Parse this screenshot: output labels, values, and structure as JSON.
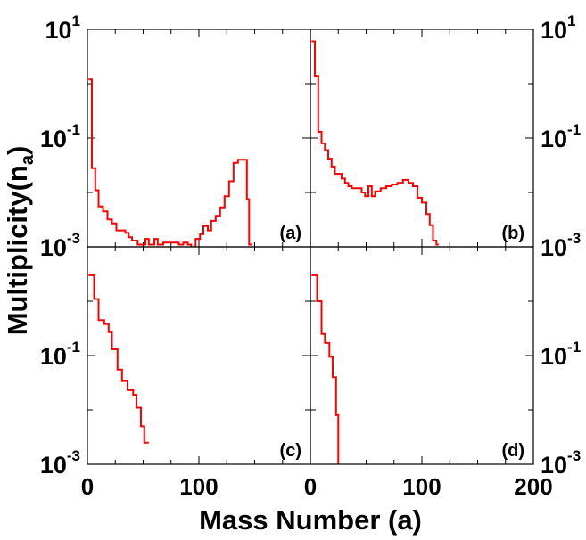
{
  "chart_data": {
    "type": "line",
    "layout": "2x2 panels sharing axes",
    "xlabel": "Mass Number (a)",
    "ylabel_main": "Multiplicity(n",
    "ylabel_sub": "a",
    "ylabel_close": ")",
    "xlim": [
      0,
      200
    ],
    "ylim": [
      0.001,
      10
    ],
    "yscale": "log",
    "x_ticks": [
      "0",
      "100",
      "200"
    ],
    "y_ticks": [
      {
        "base": "10",
        "exp": "1",
        "value": 10
      },
      {
        "base": "10",
        "exp": "-1",
        "value": 0.1
      },
      {
        "base": "10",
        "exp": "-3",
        "value": 0.001
      }
    ],
    "line_color": "#ff0000",
    "panels": [
      {
        "label": "(a)",
        "points": [
          [
            1,
            1.2
          ],
          [
            4,
            1.2
          ],
          [
            4,
            0.028
          ],
          [
            7,
            0.028
          ],
          [
            7,
            0.011
          ],
          [
            10,
            0.011
          ],
          [
            10,
            0.0055
          ],
          [
            14,
            0.0055
          ],
          [
            14,
            0.0045
          ],
          [
            18,
            0.0045
          ],
          [
            18,
            0.0032
          ],
          [
            22,
            0.0032
          ],
          [
            22,
            0.0027
          ],
          [
            26,
            0.0027
          ],
          [
            26,
            0.002
          ],
          [
            30,
            0.002
          ],
          [
            30,
            0.002
          ],
          [
            34,
            0.002
          ],
          [
            34,
            0.0018
          ],
          [
            37,
            0.0018
          ],
          [
            37,
            0.0015
          ],
          [
            40,
            0.0015
          ],
          [
            40,
            0.0013
          ],
          [
            45,
            0.0013
          ],
          [
            45,
            0.0011
          ],
          [
            52,
            0.0011
          ],
          [
            52,
            0.0014
          ],
          [
            55,
            0.0014
          ],
          [
            55,
            0.0011
          ],
          [
            60,
            0.0011
          ],
          [
            60,
            0.0014
          ],
          [
            63,
            0.0014
          ],
          [
            63,
            0.0011
          ],
          [
            68,
            0.0011
          ],
          [
            68,
            0.0012
          ],
          [
            75,
            0.0012
          ],
          [
            75,
            0.0012
          ],
          [
            82,
            0.0012
          ],
          [
            82,
            0.0011
          ],
          [
            86,
            0.0011
          ],
          [
            86,
            0.0012
          ],
          [
            90,
            0.0012
          ],
          [
            90,
            0.0011
          ],
          [
            93,
            0.0011
          ],
          [
            93,
            0.0009
          ],
          [
            97,
            0.0009
          ],
          [
            97,
            0.0014
          ],
          [
            101,
            0.0014
          ],
          [
            101,
            0.0017
          ],
          [
            104,
            0.0017
          ],
          [
            104,
            0.0024
          ],
          [
            108,
            0.0024
          ],
          [
            108,
            0.002
          ],
          [
            111,
            0.002
          ],
          [
            111,
            0.003
          ],
          [
            115,
            0.003
          ],
          [
            115,
            0.0037
          ],
          [
            119,
            0.0037
          ],
          [
            119,
            0.0053
          ],
          [
            123,
            0.0053
          ],
          [
            123,
            0.0085
          ],
          [
            127,
            0.0085
          ],
          [
            127,
            0.016
          ],
          [
            131,
            0.016
          ],
          [
            131,
            0.035
          ],
          [
            135,
            0.035
          ],
          [
            135,
            0.04
          ],
          [
            139,
            0.04
          ],
          [
            139,
            0.04
          ],
          [
            143,
            0.04
          ],
          [
            143,
            0.0075
          ],
          [
            145,
            0.0075
          ],
          [
            145,
            0.0011
          ],
          [
            148,
            0.0011
          ]
        ]
      },
      {
        "label": "(b)",
        "points": [
          [
            1,
            6.0
          ],
          [
            4,
            6.0
          ],
          [
            4,
            1.4
          ],
          [
            7,
            1.4
          ],
          [
            7,
            0.13
          ],
          [
            10,
            0.13
          ],
          [
            10,
            0.08
          ],
          [
            13,
            0.08
          ],
          [
            13,
            0.06
          ],
          [
            16,
            0.06
          ],
          [
            16,
            0.042
          ],
          [
            19,
            0.042
          ],
          [
            19,
            0.03
          ],
          [
            22,
            0.03
          ],
          [
            22,
            0.022
          ],
          [
            25,
            0.022
          ],
          [
            25,
            0.022
          ],
          [
            28,
            0.022
          ],
          [
            28,
            0.018
          ],
          [
            31,
            0.018
          ],
          [
            31,
            0.015
          ],
          [
            34,
            0.015
          ],
          [
            34,
            0.013
          ],
          [
            37,
            0.013
          ],
          [
            37,
            0.012
          ],
          [
            40,
            0.012
          ],
          [
            40,
            0.012
          ],
          [
            43,
            0.012
          ],
          [
            43,
            0.012
          ],
          [
            46,
            0.012
          ],
          [
            46,
            0.01
          ],
          [
            49,
            0.01
          ],
          [
            49,
            0.0085
          ],
          [
            52,
            0.0085
          ],
          [
            52,
            0.013
          ],
          [
            55,
            0.013
          ],
          [
            55,
            0.0085
          ],
          [
            58,
            0.0085
          ],
          [
            58,
            0.0105
          ],
          [
            63,
            0.0105
          ],
          [
            63,
            0.012
          ],
          [
            68,
            0.012
          ],
          [
            68,
            0.013
          ],
          [
            73,
            0.013
          ],
          [
            73,
            0.014
          ],
          [
            78,
            0.014
          ],
          [
            78,
            0.015
          ],
          [
            83,
            0.015
          ],
          [
            83,
            0.017
          ],
          [
            88,
            0.017
          ],
          [
            88,
            0.015
          ],
          [
            92,
            0.015
          ],
          [
            92,
            0.013
          ],
          [
            96,
            0.013
          ],
          [
            96,
            0.008
          ],
          [
            100,
            0.008
          ],
          [
            100,
            0.0065
          ],
          [
            104,
            0.0065
          ],
          [
            104,
            0.004
          ],
          [
            107,
            0.004
          ],
          [
            107,
            0.0025
          ],
          [
            110,
            0.0025
          ],
          [
            110,
            0.0013
          ],
          [
            113,
            0.0013
          ],
          [
            113,
            0.0011
          ],
          [
            115,
            0.0011
          ]
        ]
      },
      {
        "label": "(c)",
        "points": [
          [
            1,
            3.0
          ],
          [
            6,
            3.0
          ],
          [
            6,
            1.1
          ],
          [
            10,
            1.1
          ],
          [
            10,
            0.45
          ],
          [
            15,
            0.45
          ],
          [
            15,
            0.38
          ],
          [
            19,
            0.38
          ],
          [
            19,
            0.27
          ],
          [
            22,
            0.27
          ],
          [
            22,
            0.13
          ],
          [
            27,
            0.13
          ],
          [
            27,
            0.055
          ],
          [
            31,
            0.055
          ],
          [
            31,
            0.034
          ],
          [
            36,
            0.034
          ],
          [
            36,
            0.023
          ],
          [
            41,
            0.023
          ],
          [
            41,
            0.019
          ],
          [
            44,
            0.019
          ],
          [
            44,
            0.011
          ],
          [
            48,
            0.011
          ],
          [
            48,
            0.005
          ],
          [
            51,
            0.005
          ],
          [
            51,
            0.0025
          ],
          [
            55,
            0.0025
          ]
        ]
      },
      {
        "label": "(d)",
        "points": [
          [
            1,
            3.0
          ],
          [
            6,
            3.0
          ],
          [
            6,
            1.0
          ],
          [
            10,
            1.0
          ],
          [
            10,
            0.25
          ],
          [
            13,
            0.25
          ],
          [
            13,
            0.17
          ],
          [
            17,
            0.17
          ],
          [
            17,
            0.095
          ],
          [
            20,
            0.095
          ],
          [
            20,
            0.04
          ],
          [
            23,
            0.04
          ],
          [
            23,
            0.008
          ],
          [
            25,
            0.008
          ],
          [
            25,
            0.0006
          ]
        ]
      }
    ]
  }
}
